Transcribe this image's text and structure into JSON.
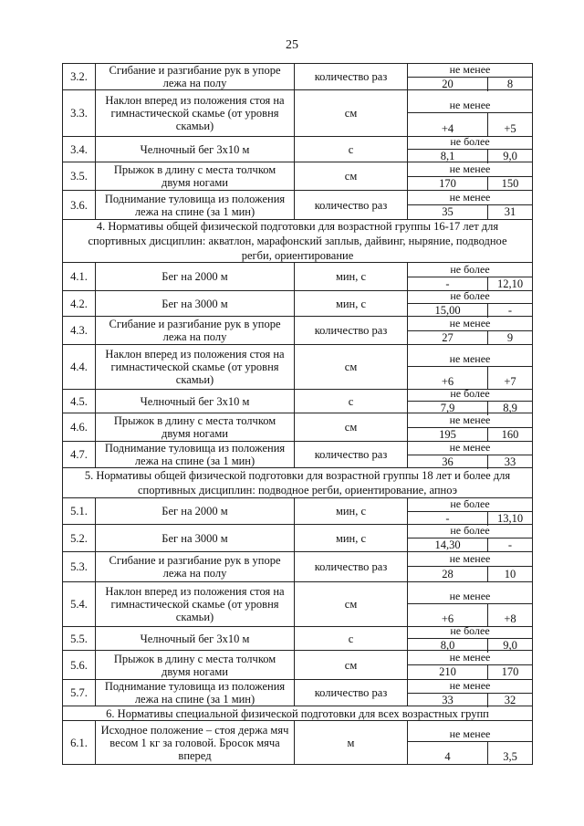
{
  "page_number": "25",
  "rows": [
    {
      "type": "item",
      "num": "3.2.",
      "exercise": "Сгибание и разгибание рук в упоре лежа на полу",
      "unit": "количество раз",
      "criterion": "не менее",
      "values": [
        "20",
        "8"
      ]
    },
    {
      "type": "item",
      "num": "3.3.",
      "exercise": "Наклон вперед из положения стоя на гимнастической скамье (от уровня скамьи)",
      "unit": "см",
      "criterion": "не менее",
      "values": [
        "+4",
        "+5"
      ]
    },
    {
      "type": "item",
      "num": "3.4.",
      "exercise": "Челночный бег 3х10 м",
      "unit": "с",
      "criterion": "не более",
      "values": [
        "8,1",
        "9,0"
      ]
    },
    {
      "type": "item",
      "num": "3.5.",
      "exercise": "Прыжок в длину с места толчком двумя ногами",
      "unit": "см",
      "criterion": "не менее",
      "values": [
        "170",
        "150"
      ]
    },
    {
      "type": "item",
      "num": "3.6.",
      "exercise": "Поднимание туловища из положения лежа на спине (за 1 мин)",
      "unit": "количество раз",
      "criterion": "не менее",
      "values": [
        "35",
        "31"
      ]
    },
    {
      "type": "section",
      "text": "4.  Нормативы общей физической подготовки для возрастной группы 16-17 лет для спортивных дисциплин: акватлон, марафонский заплыв, дайвинг, ныряние, подводное регби, ориентирование"
    },
    {
      "type": "item",
      "num": "4.1.",
      "exercise": "Бег на 2000 м",
      "unit": "мин, с",
      "criterion": "не более",
      "values": [
        "-",
        "12,10"
      ]
    },
    {
      "type": "item",
      "num": "4.2.",
      "exercise": "Бег на 3000 м",
      "unit": "мин, с",
      "criterion": "не более",
      "values": [
        "15,00",
        "-"
      ]
    },
    {
      "type": "item",
      "num": "4.3.",
      "exercise": "Сгибание и разгибание рук в упоре лежа на полу",
      "unit": "количество раз",
      "criterion": "не менее",
      "values": [
        "27",
        "9"
      ]
    },
    {
      "type": "item",
      "num": "4.4.",
      "exercise": "Наклон вперед из положения стоя на гимнастической скамье (от уровня скамьи)",
      "unit": "см",
      "criterion": "не менее",
      "values": [
        "+6",
        "+7"
      ]
    },
    {
      "type": "item",
      "num": "4.5.",
      "exercise": "Челночный бег 3х10 м",
      "unit": "с",
      "criterion": "не более",
      "values": [
        "7,9",
        "8,9"
      ]
    },
    {
      "type": "item",
      "num": "4.6.",
      "exercise": "Прыжок в длину с места толчком двумя ногами",
      "unit": "см",
      "criterion": "не менее",
      "values": [
        "195",
        "160"
      ]
    },
    {
      "type": "item",
      "num": "4.7.",
      "exercise": "Поднимание туловища из положения лежа на спине (за 1 мин)",
      "unit": "количество раз",
      "criterion": "не менее",
      "values": [
        "36",
        "33"
      ]
    },
    {
      "type": "section",
      "text": "5.  Нормативы общей физической подготовки для возрастной группы 18 лет и более для спортивных дисциплин: подводное регби, ориентирование, апноэ"
    },
    {
      "type": "item",
      "num": "5.1.",
      "exercise": "Бег на 2000 м",
      "unit": "мин, с",
      "criterion": "не более",
      "values": [
        "-",
        "13,10"
      ]
    },
    {
      "type": "item",
      "num": "5.2.",
      "exercise": "Бег на 3000 м",
      "unit": "мин, с",
      "criterion": "не более",
      "values": [
        "14,30",
        "-"
      ]
    },
    {
      "type": "item",
      "num": "5.3.",
      "exercise": "Сгибание и разгибание рук в упоре лежа на полу",
      "unit": "количество раз",
      "criterion": "не менее",
      "values": [
        "28",
        "10"
      ]
    },
    {
      "type": "item",
      "num": "5.4.",
      "exercise": "Наклон вперед из положения стоя на гимнастической скамье (от уровня скамьи)",
      "unit": "см",
      "criterion": "не менее",
      "values": [
        "+6",
        "+8"
      ]
    },
    {
      "type": "item",
      "num": "5.5.",
      "exercise": "Челночный бег 3х10 м",
      "unit": "с",
      "criterion": "не более",
      "values": [
        "8,0",
        "9,0"
      ]
    },
    {
      "type": "item",
      "num": "5.6.",
      "exercise": "Прыжок в длину с места толчком двумя ногами",
      "unit": "см",
      "criterion": "не менее",
      "values": [
        "210",
        "170"
      ]
    },
    {
      "type": "item",
      "num": "5.7.",
      "exercise": "Поднимание туловища из положения лежа на спине (за 1 мин)",
      "unit": "количество раз",
      "criterion": "не менее",
      "values": [
        "33",
        "32"
      ]
    },
    {
      "type": "section",
      "text": "6.    Нормативы специальной физической подготовки для всех возрастных групп"
    },
    {
      "type": "item",
      "num": "6.1.",
      "exercise": "Исходное положение – стоя держа мяч весом 1 кг за головой. Бросок мяча вперед",
      "unit": "м",
      "criterion": "не менее",
      "values": [
        "4",
        "3,5"
      ]
    }
  ]
}
